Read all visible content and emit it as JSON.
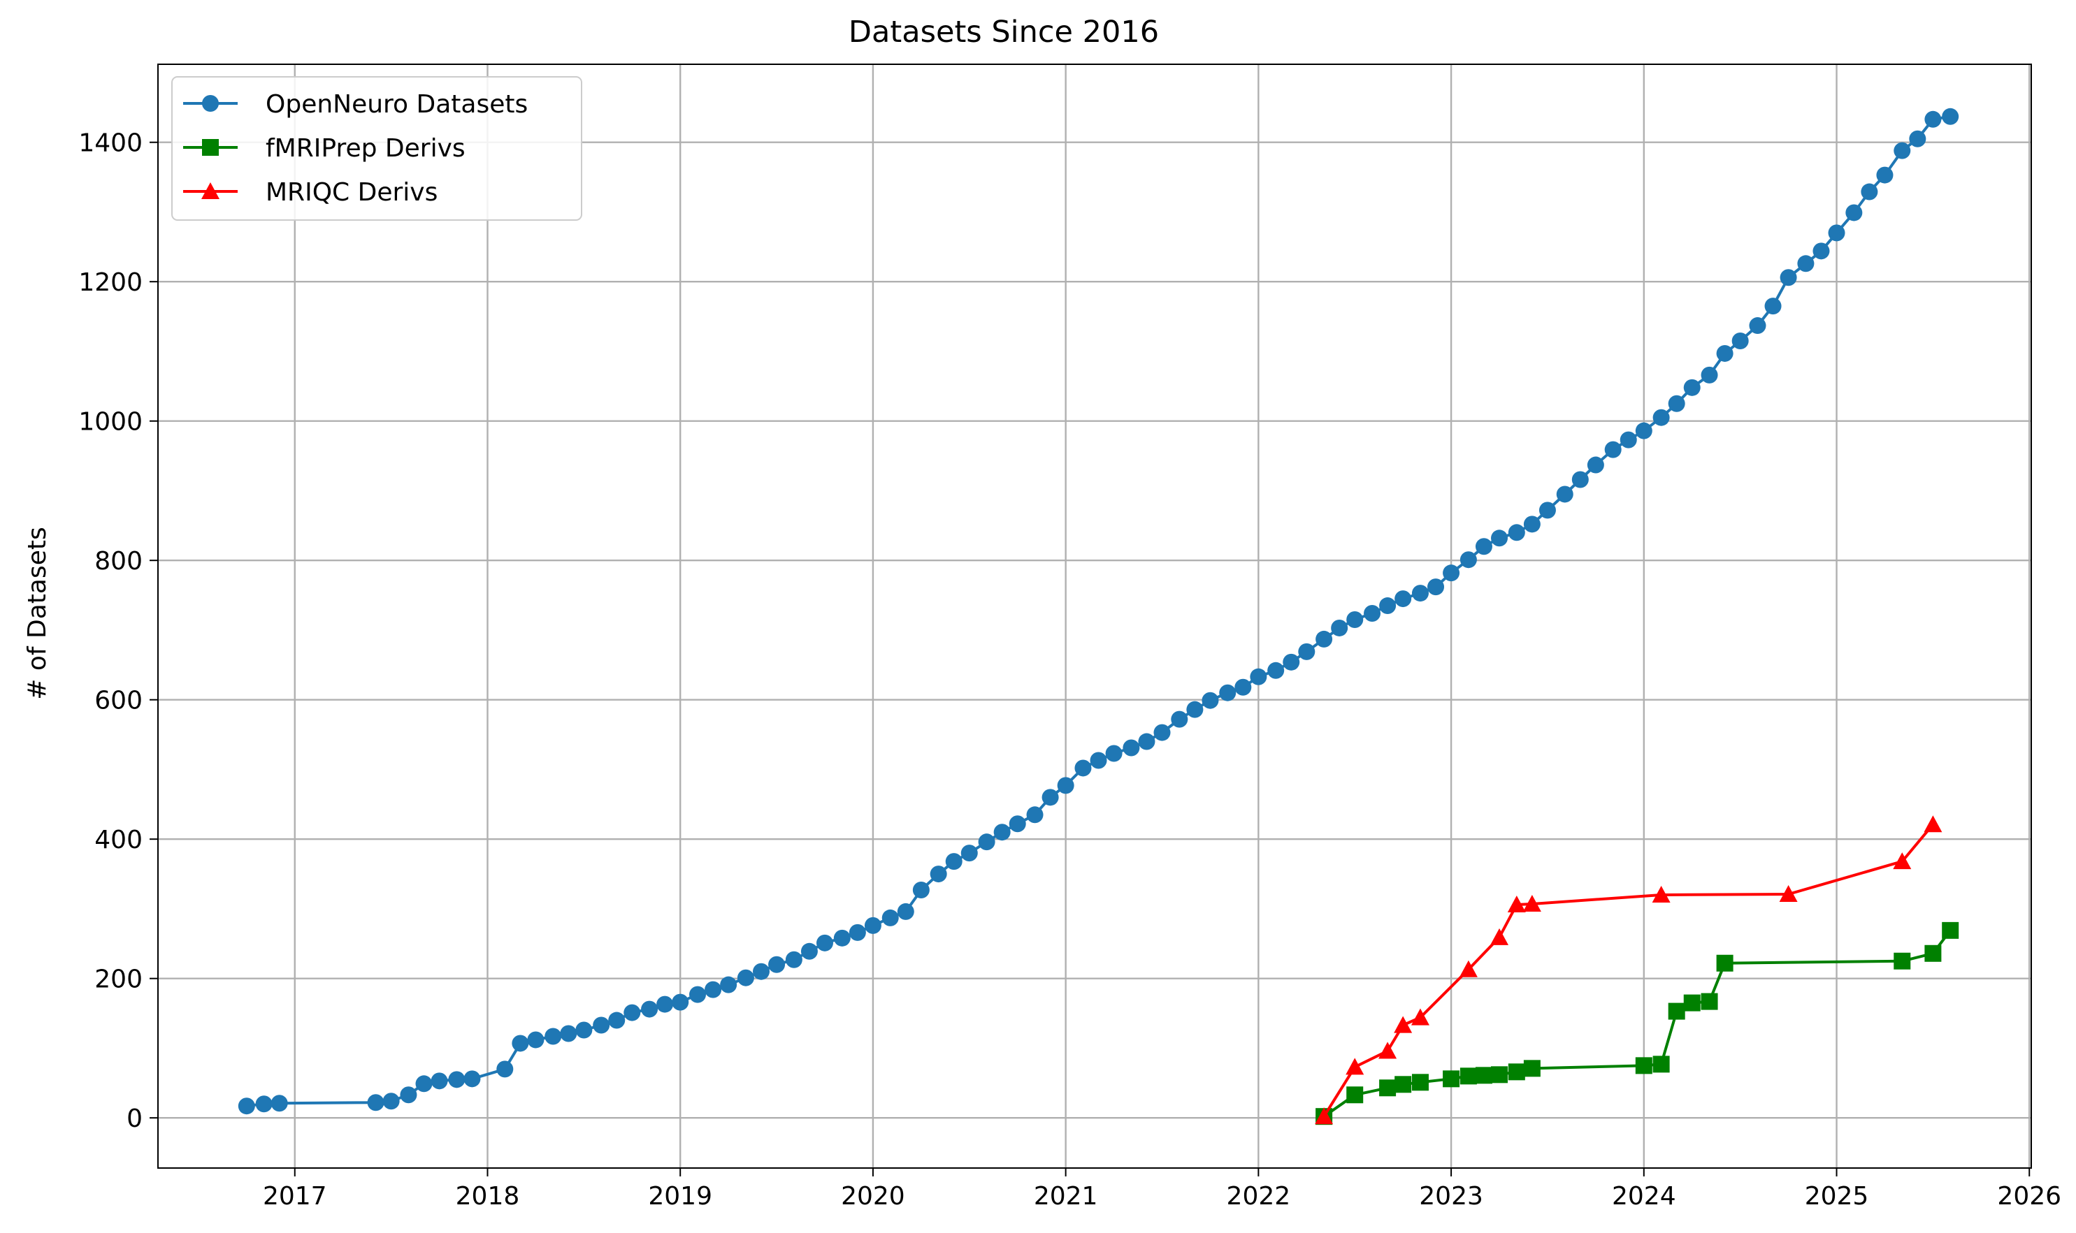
{
  "chart_data": {
    "type": "line",
    "title": "Datasets Since 2016",
    "xlabel": "",
    "ylabel": "# of Datasets",
    "xlim": [
      2016.29,
      2026.01
    ],
    "ylim": [
      -72,
      1512
    ],
    "x_ticks": [
      2017,
      2018,
      2019,
      2020,
      2021,
      2022,
      2023,
      2024,
      2025,
      2026
    ],
    "x_tick_labels": [
      "2017",
      "2018",
      "2019",
      "2020",
      "2021",
      "2022",
      "2023",
      "2024",
      "2025",
      "2026"
    ],
    "y_ticks": [
      0,
      200,
      400,
      600,
      800,
      1000,
      1200,
      1400
    ],
    "y_tick_labels": [
      "0",
      "200",
      "400",
      "600",
      "800",
      "1000",
      "1200",
      "1400"
    ],
    "grid": true,
    "legend_position": "upper-left",
    "series": [
      {
        "name": "OpenNeuro Datasets",
        "color": "#1f77b4",
        "marker": "circle",
        "points": [
          [
            2016.75,
            17
          ],
          [
            2016.84,
            20
          ],
          [
            2016.92,
            21
          ],
          [
            2017.42,
            22
          ],
          [
            2017.5,
            24
          ],
          [
            2017.59,
            33
          ],
          [
            2017.67,
            49
          ],
          [
            2017.75,
            53
          ],
          [
            2017.84,
            55
          ],
          [
            2017.92,
            56
          ],
          [
            2018.09,
            70
          ],
          [
            2018.17,
            107
          ],
          [
            2018.25,
            112
          ],
          [
            2018.34,
            117
          ],
          [
            2018.42,
            121
          ],
          [
            2018.5,
            126
          ],
          [
            2018.59,
            133
          ],
          [
            2018.67,
            140
          ],
          [
            2018.75,
            151
          ],
          [
            2018.84,
            156
          ],
          [
            2018.92,
            163
          ],
          [
            2019.0,
            166
          ],
          [
            2019.09,
            177
          ],
          [
            2019.17,
            184
          ],
          [
            2019.25,
            191
          ],
          [
            2019.34,
            201
          ],
          [
            2019.42,
            210
          ],
          [
            2019.5,
            220
          ],
          [
            2019.59,
            227
          ],
          [
            2019.67,
            239
          ],
          [
            2019.75,
            251
          ],
          [
            2019.84,
            258
          ],
          [
            2019.92,
            266
          ],
          [
            2020.0,
            276
          ],
          [
            2020.09,
            287
          ],
          [
            2020.17,
            296
          ],
          [
            2020.25,
            327
          ],
          [
            2020.34,
            350
          ],
          [
            2020.42,
            368
          ],
          [
            2020.5,
            380
          ],
          [
            2020.59,
            396
          ],
          [
            2020.67,
            410
          ],
          [
            2020.75,
            422
          ],
          [
            2020.84,
            435
          ],
          [
            2020.92,
            460
          ],
          [
            2021.0,
            477
          ],
          [
            2021.09,
            502
          ],
          [
            2021.17,
            513
          ],
          [
            2021.25,
            523
          ],
          [
            2021.34,
            531
          ],
          [
            2021.42,
            540
          ],
          [
            2021.5,
            553
          ],
          [
            2021.59,
            572
          ],
          [
            2021.67,
            586
          ],
          [
            2021.75,
            599
          ],
          [
            2021.84,
            610
          ],
          [
            2021.92,
            618
          ],
          [
            2022.0,
            633
          ],
          [
            2022.09,
            642
          ],
          [
            2022.17,
            654
          ],
          [
            2022.25,
            669
          ],
          [
            2022.34,
            687
          ],
          [
            2022.42,
            703
          ],
          [
            2022.5,
            715
          ],
          [
            2022.59,
            724
          ],
          [
            2022.67,
            735
          ],
          [
            2022.75,
            745
          ],
          [
            2022.84,
            753
          ],
          [
            2022.92,
            762
          ],
          [
            2023.0,
            782
          ],
          [
            2023.09,
            801
          ],
          [
            2023.17,
            820
          ],
          [
            2023.25,
            832
          ],
          [
            2023.34,
            840
          ],
          [
            2023.42,
            852
          ],
          [
            2023.5,
            872
          ],
          [
            2023.59,
            895
          ],
          [
            2023.67,
            916
          ],
          [
            2023.75,
            937
          ],
          [
            2023.84,
            959
          ],
          [
            2023.92,
            973
          ],
          [
            2024.0,
            986
          ],
          [
            2024.09,
            1005
          ],
          [
            2024.17,
            1025
          ],
          [
            2024.25,
            1048
          ],
          [
            2024.34,
            1066
          ],
          [
            2024.42,
            1097
          ],
          [
            2024.5,
            1115
          ],
          [
            2024.59,
            1137
          ],
          [
            2024.67,
            1165
          ],
          [
            2024.75,
            1206
          ],
          [
            2024.84,
            1226
          ],
          [
            2024.92,
            1244
          ],
          [
            2025.0,
            1270
          ],
          [
            2025.09,
            1299
          ],
          [
            2025.17,
            1329
          ],
          [
            2025.25,
            1353
          ],
          [
            2025.34,
            1388
          ],
          [
            2025.42,
            1405
          ],
          [
            2025.5,
            1433
          ],
          [
            2025.59,
            1437
          ]
        ]
      },
      {
        "name": "fMRIPrep Derivs",
        "color": "#008000",
        "marker": "square",
        "points": [
          [
            2022.34,
            2
          ],
          [
            2022.5,
            33
          ],
          [
            2022.67,
            43
          ],
          [
            2022.75,
            48
          ],
          [
            2022.84,
            51
          ],
          [
            2023.0,
            56
          ],
          [
            2023.09,
            60
          ],
          [
            2023.17,
            61
          ],
          [
            2023.25,
            62
          ],
          [
            2023.34,
            66
          ],
          [
            2023.42,
            71
          ],
          [
            2024.0,
            75
          ],
          [
            2024.09,
            77
          ],
          [
            2024.17,
            153
          ],
          [
            2024.25,
            165
          ],
          [
            2024.34,
            167
          ],
          [
            2024.42,
            222
          ],
          [
            2025.34,
            225
          ],
          [
            2025.5,
            236
          ],
          [
            2025.59,
            269
          ]
        ]
      },
      {
        "name": "MRIQC Derivs",
        "color": "#ff0000",
        "marker": "triangle",
        "points": [
          [
            2022.34,
            2
          ],
          [
            2022.5,
            73
          ],
          [
            2022.67,
            96
          ],
          [
            2022.75,
            133
          ],
          [
            2022.84,
            144
          ],
          [
            2023.09,
            213
          ],
          [
            2023.25,
            259
          ],
          [
            2023.34,
            306
          ],
          [
            2023.42,
            307
          ],
          [
            2024.09,
            320
          ],
          [
            2024.75,
            321
          ],
          [
            2025.34,
            368
          ],
          [
            2025.5,
            421
          ]
        ]
      }
    ]
  }
}
